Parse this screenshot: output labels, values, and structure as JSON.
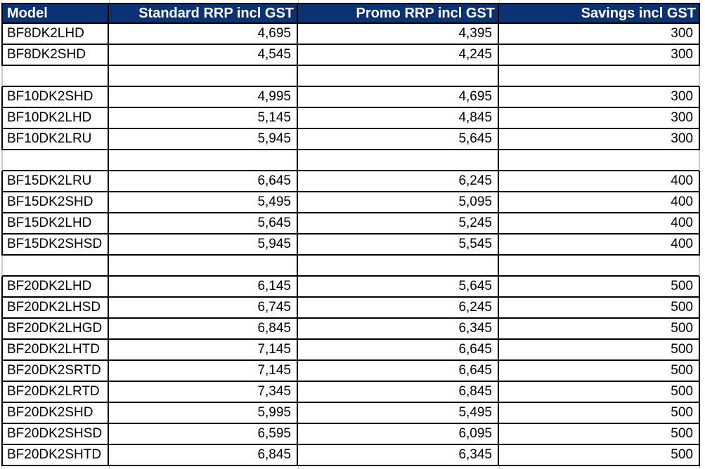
{
  "colors": {
    "header_bg": "#0C3273",
    "header_text": "#FFFFFF",
    "cell_text": "#000000",
    "cell_border": "#000000",
    "gridline": "#C9C9C9",
    "background": "#FFFFFF"
  },
  "table": {
    "columns": [
      {
        "key": "model",
        "label": "Model",
        "align": "left"
      },
      {
        "key": "standard",
        "label": "Standard RRP incl GST",
        "align": "right"
      },
      {
        "key": "promo",
        "label": "Promo RRP incl GST",
        "align": "right"
      },
      {
        "key": "savings",
        "label": "Savings incl GST",
        "align": "right"
      }
    ],
    "rows": [
      {
        "model": "BF8DK2LHD",
        "standard": "4,695",
        "promo": "4,395",
        "savings": "300"
      },
      {
        "model": "BF8DK2SHD",
        "standard": "4,545",
        "promo": "4,245",
        "savings": "300"
      },
      {
        "empty": true
      },
      {
        "model": "BF10DK2SHD",
        "standard": "4,995",
        "promo": "4,695",
        "savings": "300"
      },
      {
        "model": "BF10DK2LHD",
        "standard": "5,145",
        "promo": "4,845",
        "savings": "300"
      },
      {
        "model": "BF10DK2LRU",
        "standard": "5,945",
        "promo": "5,645",
        "savings": "300"
      },
      {
        "empty": true
      },
      {
        "model": "BF15DK2LRU",
        "standard": "6,645",
        "promo": "6,245",
        "savings": "400"
      },
      {
        "model": "BF15DK2SHD",
        "standard": "5,495",
        "promo": "5,095",
        "savings": "400"
      },
      {
        "model": "BF15DK2LHD",
        "standard": "5,645",
        "promo": "5,245",
        "savings": "400"
      },
      {
        "model": "BF15DK2SHSD",
        "standard": "5,945",
        "promo": "5,545",
        "savings": "400"
      },
      {
        "empty": true
      },
      {
        "model": "BF20DK2LHD",
        "standard": "6,145",
        "promo": "5,645",
        "savings": "500"
      },
      {
        "model": "BF20DK2LHSD",
        "standard": "6,745",
        "promo": "6,245",
        "savings": "500"
      },
      {
        "model": "BF20DK2LHGD",
        "standard": "6,845",
        "promo": "6,345",
        "savings": "500"
      },
      {
        "model": "BF20DK2LHTD",
        "standard": "7,145",
        "promo": "6,645",
        "savings": "500"
      },
      {
        "model": "BF20DK2SRTD",
        "standard": "7,145",
        "promo": "6,645",
        "savings": "500"
      },
      {
        "model": "BF20DK2LRTD",
        "standard": "7,345",
        "promo": "6,845",
        "savings": "500"
      },
      {
        "model": "BF20DK2SHD",
        "standard": "5,995",
        "promo": "5,495",
        "savings": "500"
      },
      {
        "model": "BF20DK2SHSD",
        "standard": "6,595",
        "promo": "6,095",
        "savings": "500"
      },
      {
        "model": "BF20DK2SHTD",
        "standard": "6,845",
        "promo": "6,345",
        "savings": "500"
      }
    ]
  }
}
